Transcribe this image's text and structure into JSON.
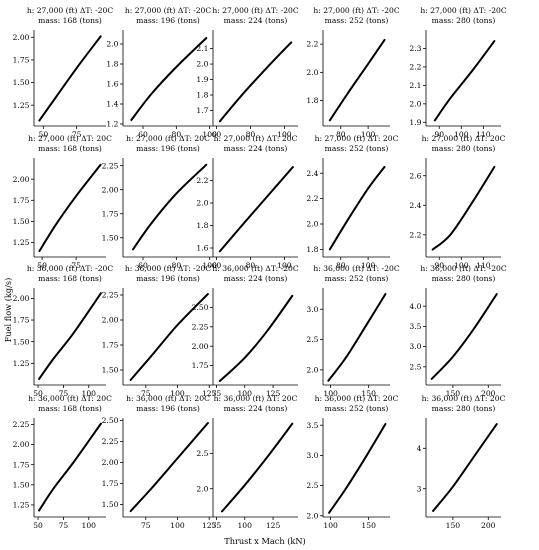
{
  "figure": {
    "ylabel": "Fuel flow (kg/s)",
    "xlabel": "Thrust x Mach (kN)"
  },
  "chart_data": [
    {
      "type": "line",
      "row": 0,
      "col": 0,
      "title_line1": "h: 27,000 (ft) ΔT: -20C",
      "title_line2": "mass: 168 (tons)",
      "x": [
        47,
        60,
        75,
        93
      ],
      "y": [
        1.08,
        1.35,
        1.66,
        2.01
      ],
      "xlim": [
        43,
        97
      ],
      "ylim": [
        1.02,
        2.08
      ],
      "xticks": [
        50,
        75
      ],
      "yticks": [
        1.25,
        1.5,
        1.75,
        2.0
      ],
      "ytick_labels": [
        "1.25",
        "1.50",
        "1.75",
        "2.00"
      ],
      "xtick_labels": [
        "50",
        "75"
      ]
    },
    {
      "type": "line",
      "row": 0,
      "col": 1,
      "title_line1": "h: 27,000 (ft) ΔT: -20C",
      "title_line2": "mass: 196 (tons)",
      "x": [
        53,
        65,
        80,
        98
      ],
      "y": [
        1.24,
        1.5,
        1.77,
        2.06
      ],
      "xlim": [
        48,
        102
      ],
      "ylim": [
        1.18,
        2.14
      ],
      "xticks": [
        60,
        80,
        100
      ],
      "yticks": [
        1.2,
        1.4,
        1.6,
        1.8,
        2.0
      ],
      "ytick_labels": [
        "1.2",
        "1.4",
        "1.6",
        "1.8",
        "2.0"
      ],
      "xtick_labels": [
        "60",
        "80",
        "100"
      ]
    },
    {
      "type": "line",
      "row": 0,
      "col": 2,
      "title_line1": "h: 27,000 (ft) ΔT: -20C",
      "title_line2": "mass: 224 (tons)",
      "x": [
        62,
        75,
        90,
        104
      ],
      "y": [
        1.63,
        1.8,
        1.98,
        2.14
      ],
      "xlim": [
        58,
        108
      ],
      "ylim": [
        1.6,
        2.22
      ],
      "xticks": [
        60,
        80,
        100
      ],
      "yticks": [
        1.7,
        1.8,
        1.9,
        2.0,
        2.1
      ],
      "ytick_labels": [
        "1.7",
        "1.8",
        "1.9",
        "2.0",
        "2.1"
      ],
      "xtick_labels": [
        "60",
        "80",
        "100"
      ]
    },
    {
      "type": "line",
      "row": 0,
      "col": 3,
      "title_line1": "h: 27,000 (ft) ΔT: -20C",
      "title_line2": "mass: 252 (tons)",
      "x": [
        72,
        85,
        100,
        112
      ],
      "y": [
        1.66,
        1.85,
        2.06,
        2.23
      ],
      "xlim": [
        67,
        116
      ],
      "ylim": [
        1.62,
        2.3
      ],
      "xticks": [
        80,
        100
      ],
      "yticks": [
        1.8,
        2.0,
        2.2
      ],
      "ytick_labels": [
        "1.8",
        "2.0",
        "2.2"
      ],
      "xtick_labels": [
        "80",
        "100"
      ]
    },
    {
      "type": "line",
      "row": 0,
      "col": 4,
      "title_line1": "h: 27,000 (ft) ΔT: -20C",
      "title_line2": "mass: 280 (tons)",
      "x": [
        88,
        95,
        105,
        115
      ],
      "y": [
        1.91,
        2.03,
        2.18,
        2.34
      ],
      "xlim": [
        84,
        118
      ],
      "ylim": [
        1.88,
        2.4
      ],
      "xticks": [
        90,
        100,
        110
      ],
      "yticks": [
        1.9,
        2.0,
        2.1,
        2.2,
        2.3
      ],
      "ytick_labels": [
        "1.9",
        "2.0",
        "2.1",
        "2.2",
        "2.3"
      ],
      "xtick_labels": [
        "90",
        "100",
        "110"
      ]
    },
    {
      "type": "line",
      "row": 1,
      "col": 0,
      "title_line1": "h: 27,000 (ft) ΔT: 20C",
      "title_line2": "mass: 168 (tons)",
      "x": [
        48,
        60,
        75,
        93
      ],
      "y": [
        1.15,
        1.46,
        1.8,
        2.17
      ],
      "xlim": [
        44,
        97
      ],
      "ylim": [
        1.08,
        2.25
      ],
      "xticks": [
        50,
        75
      ],
      "yticks": [
        1.25,
        1.5,
        1.75,
        2.0
      ],
      "ytick_labels": [
        "1.25",
        "1.50",
        "1.75",
        "2.00"
      ],
      "xtick_labels": [
        "50",
        "75"
      ]
    },
    {
      "type": "line",
      "row": 1,
      "col": 1,
      "title_line1": "h: 27,000 (ft) ΔT: 20C",
      "title_line2": "mass: 196 (tons)",
      "x": [
        54,
        65,
        80,
        98
      ],
      "y": [
        1.38,
        1.65,
        1.96,
        2.26
      ],
      "xlim": [
        48,
        102
      ],
      "ylim": [
        1.3,
        2.33
      ],
      "xticks": [
        60,
        80,
        100
      ],
      "yticks": [
        1.5,
        1.75,
        2.0,
        2.25
      ],
      "ytick_labels": [
        "1.50",
        "1.75",
        "2.00",
        "2.25"
      ],
      "xtick_labels": [
        "60",
        "80",
        "100"
      ]
    },
    {
      "type": "line",
      "row": 1,
      "col": 2,
      "title_line1": "h: 27,000 (ft) ΔT: 20C",
      "title_line2": "mass: 224 (tons)",
      "x": [
        62,
        75,
        90,
        105
      ],
      "y": [
        1.57,
        1.8,
        2.06,
        2.32
      ],
      "xlim": [
        58,
        108
      ],
      "ylim": [
        1.52,
        2.4
      ],
      "xticks": [
        60,
        80,
        100
      ],
      "yticks": [
        1.6,
        1.8,
        2.0,
        2.2
      ],
      "ytick_labels": [
        "1.6",
        "1.8",
        "2.0",
        "2.2"
      ],
      "xtick_labels": [
        "60",
        "80",
        "100"
      ]
    },
    {
      "type": "line",
      "row": 1,
      "col": 3,
      "title_line1": "h: 27,000 (ft) ΔT: 20C",
      "title_line2": "mass: 252 (tons)",
      "x": [
        72,
        85,
        100,
        112
      ],
      "y": [
        1.8,
        2.03,
        2.28,
        2.45
      ],
      "xlim": [
        67,
        116
      ],
      "ylim": [
        1.74,
        2.52
      ],
      "xticks": [
        80,
        100
      ],
      "yticks": [
        1.8,
        2.0,
        2.2,
        2.4
      ],
      "ytick_labels": [
        "1.8",
        "2.0",
        "2.2",
        "2.4"
      ],
      "xtick_labels": [
        "80",
        "100"
      ]
    },
    {
      "type": "line",
      "row": 1,
      "col": 4,
      "title_line1": "h: 27,000 (ft) ΔT: 20C",
      "title_line2": "mass: 280 (tons)",
      "x": [
        87,
        95,
        105,
        115
      ],
      "y": [
        2.1,
        2.2,
        2.42,
        2.66
      ],
      "xlim": [
        84,
        118
      ],
      "ylim": [
        2.05,
        2.72
      ],
      "xticks": [
        90,
        100,
        110
      ],
      "yticks": [
        2.2,
        2.4,
        2.6
      ],
      "ytick_labels": [
        "2.2",
        "2.4",
        "2.6"
      ],
      "xtick_labels": [
        "90",
        "100",
        "110"
      ]
    },
    {
      "type": "line",
      "row": 2,
      "col": 0,
      "title_line1": "h: 36,000 (ft) ΔT: -20C",
      "title_line2": "mass: 168 (tons)",
      "x": [
        51,
        65,
        85,
        112
      ],
      "y": [
        1.07,
        1.3,
        1.6,
        2.06
      ],
      "xlim": [
        46,
        117
      ],
      "ylim": [
        1.0,
        2.12
      ],
      "xticks": [
        50,
        75,
        100
      ],
      "yticks": [
        1.25,
        1.5,
        1.75,
        2.0
      ],
      "ytick_labels": [
        "1.25",
        "1.50",
        "1.75",
        "2.00"
      ],
      "xtick_labels": [
        "50",
        "75",
        "100"
      ]
    },
    {
      "type": "line",
      "row": 2,
      "col": 1,
      "title_line1": "h: 36,000 (ft) ΔT: -20C",
      "title_line2": "mass: 196 (tons)",
      "x": [
        63,
        80,
        100,
        124
      ],
      "y": [
        1.4,
        1.65,
        1.95,
        2.26
      ],
      "xlim": [
        57,
        128
      ],
      "ylim": [
        1.35,
        2.32
      ],
      "xticks": [
        75,
        100,
        125
      ],
      "yticks": [
        1.5,
        1.75,
        2.0,
        2.25
      ],
      "ytick_labels": [
        "1.50",
        "1.75",
        "2.00",
        "2.25"
      ],
      "xtick_labels": [
        "75",
        "100",
        "125"
      ]
    },
    {
      "type": "line",
      "row": 2,
      "col": 2,
      "title_line1": "h: 36,000 (ft) ΔT: -20C",
      "title_line2": "mass: 224 (tons)",
      "x": [
        78,
        100,
        120,
        142
      ],
      "y": [
        1.55,
        1.85,
        2.2,
        2.65
      ],
      "xlim": [
        72,
        147
      ],
      "ylim": [
        1.5,
        2.75
      ],
      "xticks": [
        75,
        100,
        125
      ],
      "yticks": [
        1.75,
        2.0,
        2.25,
        2.5
      ],
      "ytick_labels": [
        "1.75",
        "2.00",
        "2.25",
        "2.50"
      ],
      "xtick_labels": [
        "75",
        "100",
        "125"
      ]
    },
    {
      "type": "line",
      "row": 2,
      "col": 3,
      "title_line1": "h: 36,000 (ft) ΔT: -20C",
      "title_line2": "mass: 252 (tons)",
      "x": [
        97,
        120,
        145,
        172
      ],
      "y": [
        1.82,
        2.2,
        2.7,
        3.25
      ],
      "xlim": [
        90,
        178
      ],
      "ylim": [
        1.75,
        3.35
      ],
      "xticks": [
        100,
        150
      ],
      "yticks": [
        2.0,
        2.5,
        3.0
      ],
      "ytick_labels": [
        "2.0",
        "2.5",
        "3.0"
      ],
      "xtick_labels": [
        "100",
        "150"
      ]
    },
    {
      "type": "line",
      "row": 2,
      "col": 4,
      "title_line1": "h: 36,000 (ft) ΔT: -20C",
      "title_line2": "mass: 280 (tons)",
      "x": [
        120,
        150,
        180,
        212
      ],
      "y": [
        2.2,
        2.75,
        3.45,
        4.3
      ],
      "xlim": [
        112,
        218
      ],
      "ylim": [
        2.05,
        4.45
      ],
      "xticks": [
        150,
        200
      ],
      "yticks": [
        2.5,
        3.0,
        3.5,
        4.0
      ],
      "ytick_labels": [
        "2.5",
        "3.0",
        "3.5",
        "4.0"
      ],
      "xtick_labels": [
        "150",
        "200"
      ]
    },
    {
      "type": "line",
      "row": 3,
      "col": 0,
      "title_line1": "h: 36,000 (ft) ΔT: 20C",
      "title_line2": "mass: 168 (tons)",
      "x": [
        51,
        65,
        85,
        112
      ],
      "y": [
        1.18,
        1.45,
        1.78,
        2.26
      ],
      "xlim": [
        46,
        117
      ],
      "ylim": [
        1.1,
        2.33
      ],
      "xticks": [
        50,
        75,
        100
      ],
      "yticks": [
        1.25,
        1.5,
        1.75,
        2.0,
        2.25
      ],
      "ytick_labels": [
        "1.25",
        "1.50",
        "1.75",
        "2.00",
        "2.25"
      ],
      "xtick_labels": [
        "50",
        "75",
        "100"
      ]
    },
    {
      "type": "line",
      "row": 3,
      "col": 1,
      "title_line1": "h: 36,000 (ft) ΔT: 20C",
      "title_line2": "mass: 196 (tons)",
      "x": [
        63,
        80,
        100,
        124
      ],
      "y": [
        1.42,
        1.7,
        2.05,
        2.47
      ],
      "xlim": [
        57,
        128
      ],
      "ylim": [
        1.35,
        2.53
      ],
      "xticks": [
        75,
        100,
        125
      ],
      "yticks": [
        1.5,
        1.75,
        2.0,
        2.25,
        2.5
      ],
      "ytick_labels": [
        "1.50",
        "1.75",
        "2.00",
        "2.25",
        "2.50"
      ],
      "xtick_labels": [
        "75",
        "100",
        "125"
      ]
    },
    {
      "type": "line",
      "row": 3,
      "col": 2,
      "title_line1": "h: 36,000 (ft) ΔT: 20C",
      "title_line2": "mass: 224 (tons)",
      "x": [
        80,
        100,
        120,
        142
      ],
      "y": [
        1.68,
        2.05,
        2.45,
        2.92
      ],
      "xlim": [
        72,
        147
      ],
      "ylim": [
        1.6,
        3.0
      ],
      "xticks": [
        75,
        100,
        125
      ],
      "yticks": [
        2.0,
        2.5
      ],
      "ytick_labels": [
        "2.0",
        "2.5"
      ],
      "xtick_labels": [
        "75",
        "100",
        "125"
      ]
    },
    {
      "type": "line",
      "row": 3,
      "col": 3,
      "title_line1": "h: 36,000 (ft) ΔT: 20C",
      "title_line2": "mass: 252 (tons)",
      "x": [
        98,
        120,
        145,
        172
      ],
      "y": [
        2.05,
        2.45,
        2.95,
        3.52
      ],
      "xlim": [
        90,
        178
      ],
      "ylim": [
        1.98,
        3.62
      ],
      "xticks": [
        100,
        150
      ],
      "yticks": [
        2.0,
        2.5,
        3.0,
        3.5
      ],
      "ytick_labels": [
        "2.0",
        "2.5",
        "3.0",
        "3.5"
      ],
      "xtick_labels": [
        "100",
        "150"
      ]
    },
    {
      "type": "line",
      "row": 3,
      "col": 4,
      "title_line1": "h: 36,000 (ft) ΔT: 20C",
      "title_line2": "mass: 280 (tons)",
      "x": [
        122,
        150,
        180,
        212
      ],
      "y": [
        2.45,
        3.05,
        3.8,
        4.6
      ],
      "xlim": [
        112,
        218
      ],
      "ylim": [
        2.3,
        4.75
      ],
      "xticks": [
        150,
        200
      ],
      "yticks": [
        3,
        4
      ],
      "ytick_labels": [
        "3",
        "4"
      ],
      "xtick_labels": [
        "150",
        "200"
      ]
    }
  ]
}
